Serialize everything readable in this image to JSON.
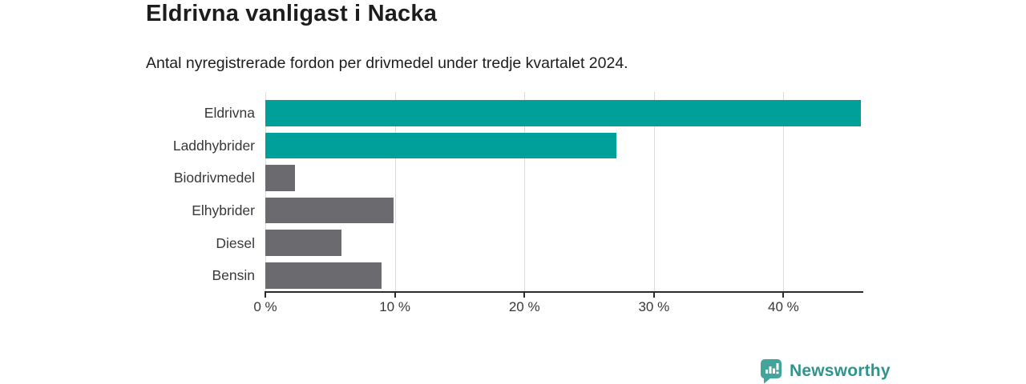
{
  "header": {
    "title": "Eldrivna vanligast i Nacka",
    "subtitle": "Antal nyregistrerade fordon per drivmedel under tredje kvartalet 2024."
  },
  "chart_data": {
    "type": "bar",
    "orientation": "horizontal",
    "title": "Eldrivna vanligast i Nacka",
    "xlabel": "",
    "ylabel": "",
    "unit": "%",
    "categories": [
      "Eldrivna",
      "Laddhybrider",
      "Biodrivmedel",
      "Elhybrider",
      "Diesel",
      "Bensin"
    ],
    "values": [
      46.0,
      27.1,
      2.3,
      9.9,
      5.9,
      9.0
    ],
    "bar_colors": [
      "#00a09a",
      "#00a09a",
      "#6a6a6f",
      "#6a6a6f",
      "#6a6a6f",
      "#6a6a6f"
    ],
    "x_ticks": [
      0,
      10,
      20,
      30,
      40
    ],
    "x_tick_labels": [
      "0 %",
      "10 %",
      "20 %",
      "30 %",
      "40 %"
    ],
    "xlim": [
      0,
      46.1
    ],
    "grid": true,
    "legend": "none"
  },
  "footer": {
    "brand": "Newsworthy"
  },
  "colors": {
    "accent_teal": "#00a09a",
    "bar_gray": "#6a6a6f",
    "grid": "#dcdcdc",
    "axis": "#2b2b2b",
    "text_dark": "#1d1d1d",
    "label": "#383838",
    "logo_icon_teal": "#43a49c",
    "logo_text_teal": "#2f948d"
  }
}
